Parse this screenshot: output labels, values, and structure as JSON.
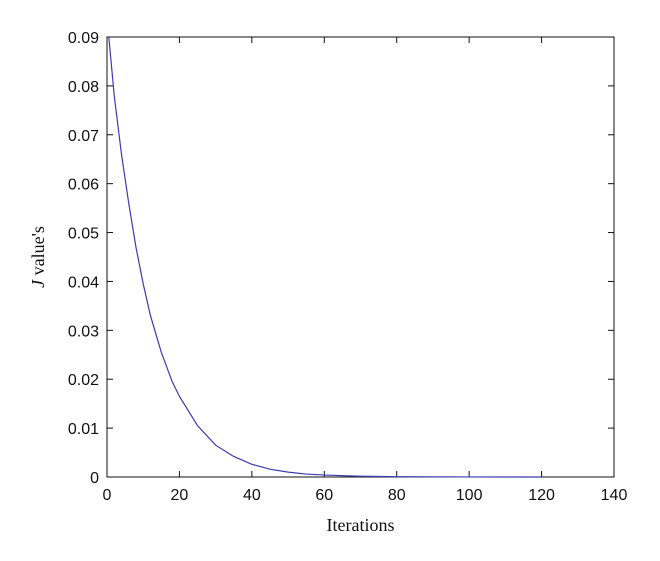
{
  "chart_data": {
    "type": "line",
    "title": "",
    "xlabel": "Iterations",
    "ylabel_prefix": "J",
    "ylabel_suffix": " value's",
    "xlim": [
      0,
      140
    ],
    "ylim": [
      0,
      0.09
    ],
    "xticks": [
      0,
      20,
      40,
      60,
      80,
      100,
      120,
      140
    ],
    "yticks": [
      0,
      0.01,
      0.02,
      0.03,
      0.04,
      0.05,
      0.06,
      0.07,
      0.08,
      0.09
    ],
    "xtick_labels": [
      "0",
      "20",
      "40",
      "60",
      "80",
      "100",
      "120",
      "140"
    ],
    "ytick_labels": [
      "0",
      "0.01",
      "0.02",
      "0.03",
      "0.04",
      "0.05",
      "0.06",
      "0.07",
      "0.08",
      "0.09"
    ],
    "grid": false,
    "legend": "none",
    "series": [
      {
        "color": "#3b3bb0",
        "x": [
          0.5,
          2,
          4,
          6,
          8,
          10,
          12,
          15,
          18,
          20,
          25,
          30,
          35,
          40,
          45,
          50,
          55,
          60,
          70,
          80,
          90,
          100,
          110,
          120
        ],
        "y": [
          0.09,
          0.078,
          0.066,
          0.056,
          0.047,
          0.0395,
          0.033,
          0.0255,
          0.0195,
          0.0165,
          0.0105,
          0.0065,
          0.0042,
          0.0026,
          0.0016,
          0.001,
          0.0006,
          0.0004,
          0.00015,
          6e-05,
          2e-05,
          1e-05,
          0.0,
          0.0
        ]
      }
    ]
  }
}
